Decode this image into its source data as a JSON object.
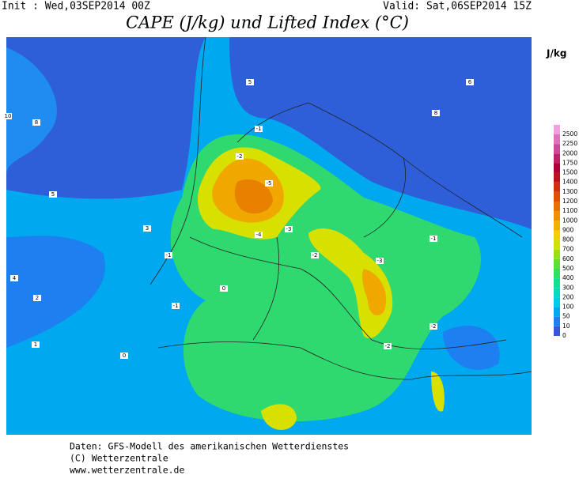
{
  "header": {
    "init": "Init : Wed,03SEP2014 00Z",
    "valid": "Valid: Sat,06SEP2014 15Z",
    "title": "CAPE (J/kg) und Lifted Index (°C)"
  },
  "map": {
    "contour_labels": [
      -5,
      -4,
      -3,
      -2,
      -3,
      -2,
      -1,
      -1,
      -1,
      -2,
      0,
      0,
      1,
      2,
      4,
      3,
      5,
      8,
      10,
      6,
      8,
      5,
      -1,
      -2
    ]
  },
  "legend": {
    "unit": "J/kg",
    "levels": [
      0,
      10,
      50,
      100,
      200,
      300,
      400,
      500,
      600,
      700,
      800,
      900,
      1000,
      1100,
      1200,
      1300,
      1400,
      1500,
      1750,
      2000,
      2250,
      2500
    ],
    "colors": [
      "#3a55d8",
      "#1e7ff0",
      "#00a8f0",
      "#00cce8",
      "#00dcc0",
      "#10e090",
      "#30e060",
      "#60e030",
      "#98e010",
      "#d0e000",
      "#f0d000",
      "#f0b000",
      "#f09000",
      "#e87000",
      "#e05000",
      "#d03010",
      "#c01020",
      "#b00038",
      "#c02068",
      "#d04898",
      "#e070c0",
      "#f0a0dc"
    ]
  },
  "footer": {
    "line1": "Daten: GFS-Modell des amerikanischen Wetterdienstes",
    "line2": "(C) Wetterzentrale",
    "line3": "www.wetterzentrale.de"
  }
}
